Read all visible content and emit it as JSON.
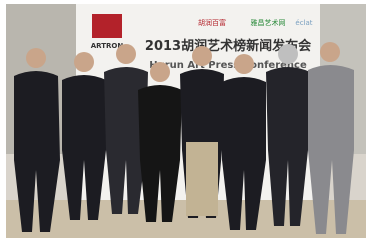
{
  "backdrop": {
    "title": "2013胡润艺术榜新闻发布会",
    "subtitle": "Hurun Art Press Conference",
    "logo": "ARTRON",
    "sponsors": [
      "胡润百富",
      "雅昌艺术网",
      "éclat"
    ]
  }
}
